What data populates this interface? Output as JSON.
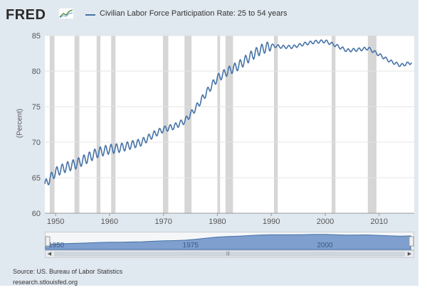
{
  "brand": {
    "logo_text": "FRED",
    "logo_icon": "trend-chart-icon"
  },
  "legend": {
    "label": "Civilian Labor Force Participation Rate: 25 to 54 years"
  },
  "y_axis_label": "(Percent)",
  "source_text": "Source: US. Bureau of Labor Statistics",
  "site_text": "research.stlouisfed.org",
  "colors": {
    "line": "#4572a7",
    "recession": "#d6d6d6",
    "nav_fill": "#7f9fcf",
    "frame": "#e1e9f0"
  },
  "navigator": {
    "labels": [
      "1950",
      "1975",
      "2000"
    ]
  },
  "chart_data": {
    "type": "line",
    "title": "",
    "ylabel": "(Percent)",
    "xlabel": "",
    "xlim": [
      1948,
      2016.5
    ],
    "ylim": [
      60,
      85
    ],
    "x_ticks": [
      "1950",
      "1960",
      "1970",
      "1980",
      "1990",
      "2000",
      "2010"
    ],
    "y_ticks": [
      "60",
      "65",
      "70",
      "75",
      "80",
      "85"
    ],
    "grid": "horizontal",
    "legend_position": "top",
    "recessions": [
      [
        1948.9,
        1949.8
      ],
      [
        1953.5,
        1954.4
      ],
      [
        1957.6,
        1958.3
      ],
      [
        1960.3,
        1961.1
      ],
      [
        1969.9,
        1970.9
      ],
      [
        1973.9,
        1975.2
      ],
      [
        1980.0,
        1980.5
      ],
      [
        1981.5,
        1982.9
      ],
      [
        1990.5,
        1991.2
      ],
      [
        2001.2,
        2001.9
      ],
      [
        2007.9,
        2009.5
      ]
    ],
    "series": [
      {
        "x": [
          1948,
          1950,
          1952,
          1954,
          1956,
          1958,
          1960,
          1962,
          1964,
          1966,
          1968,
          1970,
          1972,
          1974,
          1976,
          1978,
          1980,
          1982,
          1984,
          1986,
          1988,
          1990,
          1992,
          1994,
          1996,
          1998,
          2000,
          2002,
          2004,
          2006,
          2008,
          2010,
          2012,
          2014,
          2016
        ],
        "y": [
          64.0,
          65.8,
          66.5,
          67.0,
          67.8,
          68.6,
          69.0,
          69.2,
          69.6,
          70.0,
          71.0,
          71.8,
          72.2,
          73.0,
          74.8,
          77.0,
          79.0,
          80.0,
          80.8,
          82.0,
          83.0,
          83.6,
          83.4,
          83.4,
          83.8,
          84.1,
          84.2,
          83.6,
          82.9,
          83.0,
          83.2,
          82.3,
          81.4,
          80.8,
          81.2
        ]
      }
    ]
  }
}
